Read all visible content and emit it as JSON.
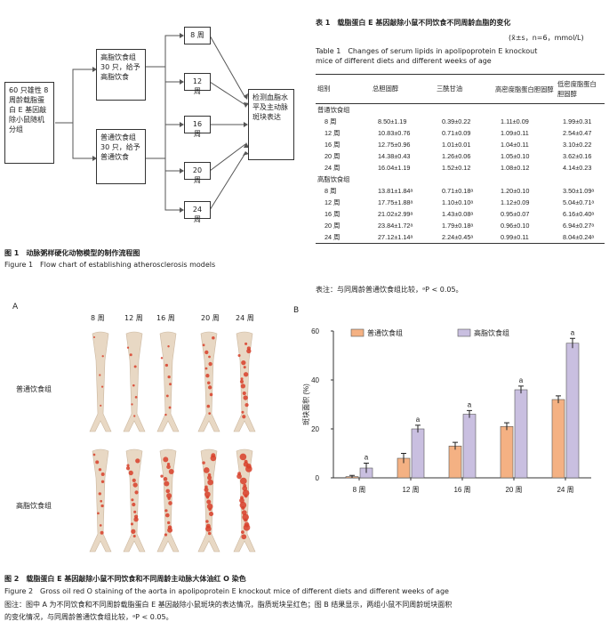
{
  "flow": {
    "start": "60 只雄性 8 周龄载脂蛋白 E 基因敲除小鼠随机分组",
    "high_fat_group": "高脂饮食组 30 只，给予高脂饮食",
    "normal_group": "普通饮食组 30 只，给予普通饮食",
    "weeks": [
      "8 周",
      "12 周",
      "16 周",
      "20 周",
      "24 周"
    ],
    "detect": "检测血脂水平及主动脉斑块表达",
    "caption_cn": "图 1　动脉粥样硬化动物模型的制作流程图",
    "caption_en": "Figure 1　Flow chart of establishing atherosclerosis models"
  },
  "table1": {
    "title_cn": "表 1　载脂蛋白 E 基因敲除小鼠不同饮食不同周龄血脂的变化",
    "units": "(x̄±s，n=6，mmol/L)",
    "title_en_1": "Table 1　Changes of serum lipids in apolipoprotein E knockout",
    "title_en_2": "mice of different diets and different weeks of age",
    "headers": [
      "组别",
      "总胆固醇",
      "三酰甘油",
      "高密度脂蛋白胆固醇",
      "低密度脂蛋白胆固醇"
    ],
    "group_normal": "普通饮食组",
    "group_high": "高脂饮食组",
    "rows_normal": [
      [
        "8 周",
        "8.50±1.19",
        "0.39±0.22",
        "1.11±0.09",
        "1.99±0.31"
      ],
      [
        "12 周",
        "10.83±0.76",
        "0.71±0.09",
        "1.09±0.11",
        "2.54±0.47"
      ],
      [
        "16 周",
        "12.75±0.96",
        "1.01±0.01",
        "1.04±0.11",
        "3.10±0.22"
      ],
      [
        "20 周",
        "14.38±0.43",
        "1.26±0.06",
        "1.05±0.10",
        "3.62±0.16"
      ],
      [
        "24 周",
        "16.04±1.19",
        "1.52±0.12",
        "1.08±0.12",
        "4.14±0.23"
      ]
    ],
    "rows_high": [
      [
        "8 周",
        "13.81±1.84ᵃ",
        "0.71±0.18ᵃ",
        "1.20±0.10",
        "3.50±1.09ᵃ"
      ],
      [
        "12 周",
        "17.75±1.88ᵃ",
        "1.10±0.10ᵃ",
        "1.12±0.09",
        "5.04±0.71ᵃ"
      ],
      [
        "16 周",
        "21.02±2.99ᵃ",
        "1.43±0.08ᵃ",
        "0.95±0.07",
        "6.16±0.40ᵃ"
      ],
      [
        "20 周",
        "23.84±1.72ᵃ",
        "1.79±0.18ᵃ",
        "0.96±0.10",
        "6.94±0.27ᵃ"
      ],
      [
        "24 周",
        "27.12±1.14ᵃ",
        "2.24±0.45ᵃ",
        "0.99±0.11",
        "8.04±0.24ᵃ"
      ]
    ],
    "note": "表注：与同周龄普通饮食组比较，ᵃP < 0.05。"
  },
  "panel_a": {
    "label": "A",
    "weeks": [
      "8 周",
      "12 周",
      "16 周",
      "20 周",
      "24 周"
    ],
    "row_normal": "普通饮食组",
    "row_high": "高脂饮食组"
  },
  "chart_data": {
    "type": "bar",
    "panel_label": "B",
    "categories": [
      "8 周",
      "12 周",
      "16 周",
      "20 周",
      "24 周"
    ],
    "series": [
      {
        "name": "普通饮食组",
        "values": [
          0.5,
          8,
          13,
          21,
          32
        ],
        "errors": [
          0.5,
          2,
          1.5,
          1.5,
          1.5
        ],
        "color": "#f4b183"
      },
      {
        "name": "高脂饮食组",
        "values": [
          4,
          20,
          26,
          36,
          55
        ],
        "errors": [
          2,
          1.5,
          1.5,
          1.5,
          2
        ],
        "color": "#c9bfe0",
        "sig": [
          "a",
          "a",
          "a",
          "a",
          "a"
        ]
      }
    ],
    "ylabel": "斑块面积 (%)",
    "yticks": [
      0,
      20,
      40,
      60
    ],
    "ylim": [
      0,
      60
    ],
    "legend": "top"
  },
  "figure2": {
    "caption_cn": "图 2　载脂蛋白 E 基因敲除小鼠不同饮食和不同周龄主动脉大体油红 O 染色",
    "caption_en": "Figure 2　Gross oil red O staining of the aorta in apolipoprotein E knockout mice of different diets and different weeks of age",
    "note_1": "图注：图中 A 为不同饮食和不同周龄载脂蛋白 E 基因敲除小鼠斑块的表达情况，脂质斑块呈红色；图 B 结果显示，两组小鼠不同周龄斑块面积",
    "note_2": "的变化情况，与同周龄普通饮食组比较，ᵃP < 0.05。"
  },
  "colors": {
    "plaque": "#d8402a",
    "aorta": "#e8d8c4",
    "normal_bar": "#f4b183",
    "high_bar": "#c9bfe0"
  }
}
